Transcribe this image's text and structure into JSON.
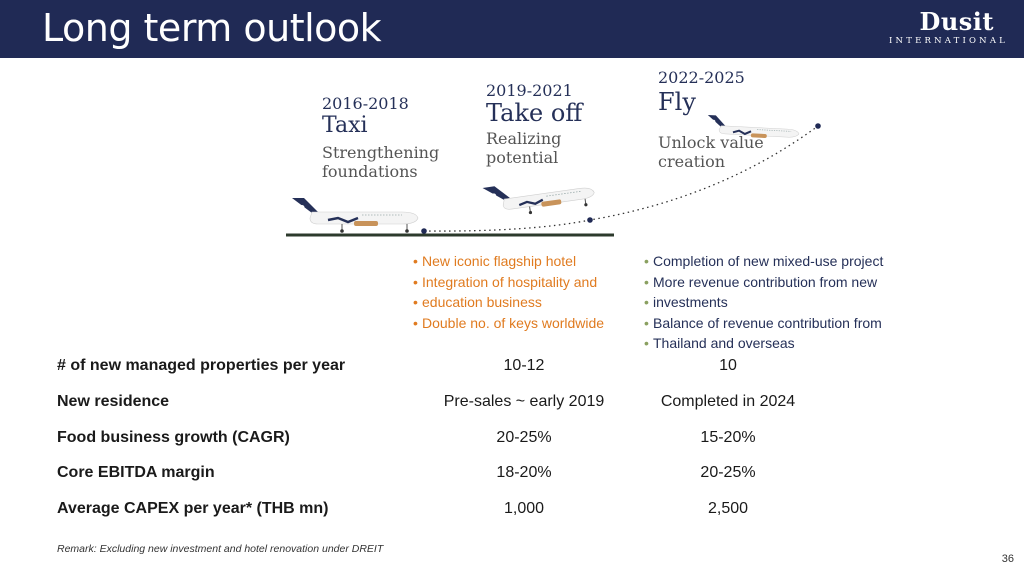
{
  "header": {
    "title": "Long term outlook",
    "logo_word": "Dusit",
    "logo_sub": "INTERNATIONAL"
  },
  "stages": [
    {
      "years": "2016-2018",
      "name": "Taxi",
      "desc_line1": "Strengthening",
      "desc_line2": "foundations"
    },
    {
      "years": "2019-2021",
      "name": "Take off",
      "desc_line1": "Realizing",
      "desc_line2": "potential"
    },
    {
      "years": "2022-2025",
      "name": "Fly",
      "desc_line1": "Unlock value",
      "desc_line2": "creation"
    }
  ],
  "bullets_2019": [
    "New iconic flagship hotel",
    "Integration of hospitality and",
    "education business",
    "Double no. of keys worldwide"
  ],
  "bullets_2022": [
    "Completion of new mixed-use project",
    "More revenue contribution from new",
    "investments",
    "Balance of revenue contribution from",
    "Thailand and overseas"
  ],
  "table": [
    {
      "label": "# of new managed properties per year",
      "c1": "10-12",
      "c2": "10"
    },
    {
      "label": "New residence",
      "c1": "Pre-sales ~ early 2019",
      "c2": "Completed in 2024"
    },
    {
      "label": "Food business growth (CAGR)",
      "c1": "20-25%",
      "c2": "15-20%"
    },
    {
      "label": "Core EBITDA margin",
      "c1": "18-20%",
      "c2": "20-25%"
    },
    {
      "label": "Average CAPEX per year*  (THB mn)",
      "c1": "1,000",
      "c2": "2,500"
    }
  ],
  "remark": "Remark: Excluding new investment and hotel renovation under DREIT",
  "page_number": "36",
  "colors": {
    "navy": "#202a55",
    "orange": "#e07b20",
    "bullet_green": "#8aa060",
    "plane_tail": "#253058",
    "plane_accent": "#c8935a"
  }
}
